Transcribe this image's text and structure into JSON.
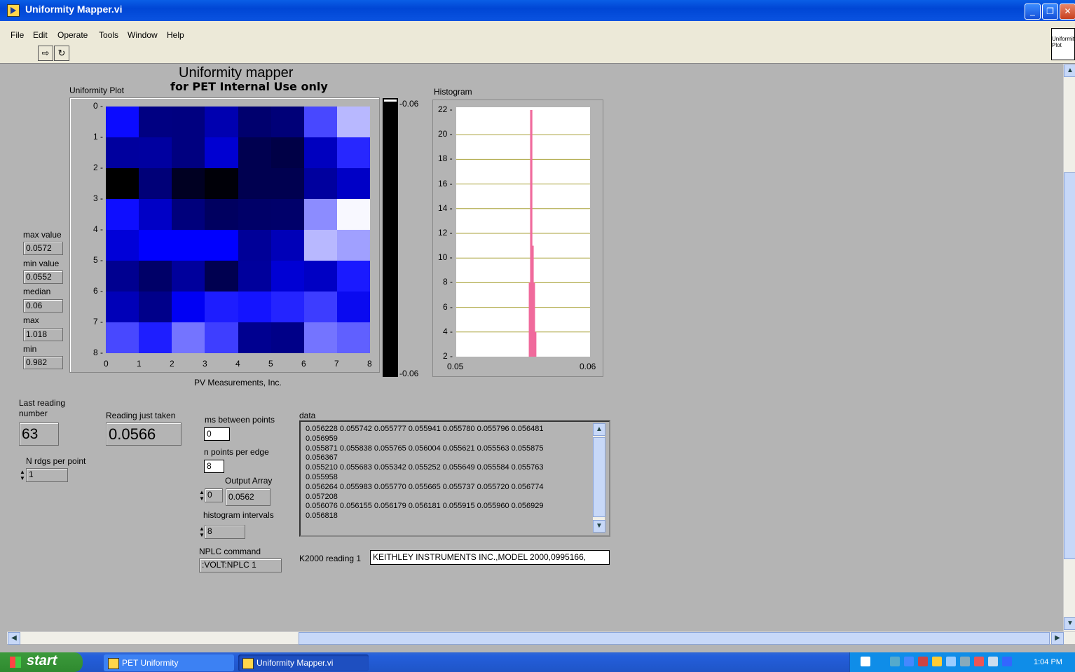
{
  "window": {
    "title": "Uniformity Mapper.vi"
  },
  "menu": [
    "File",
    "Edit",
    "Operate",
    "Tools",
    "Window",
    "Help"
  ],
  "vi_icon_text": "Uniformity Plot",
  "header": {
    "title": "Uniformity mapper",
    "subtitle": "for PET Internal Use only"
  },
  "uniformity_plot": {
    "label": "Uniformity Plot",
    "y_ticks": [
      "0",
      "1",
      "2",
      "3",
      "4",
      "5",
      "6",
      "7",
      "8"
    ],
    "x_ticks": [
      "0",
      "1",
      "2",
      "3",
      "4",
      "5",
      "6",
      "7",
      "8"
    ],
    "footer": "PV Measurements, Inc.",
    "grid_colors": [
      [
        "#0b0bff",
        "#000082",
        "#000080",
        "#0000b0",
        "#00006e",
        "#000078",
        "#4848ff",
        "#b8b8ff"
      ],
      [
        "#00009e",
        "#0000a0",
        "#000080",
        "#0000d2",
        "#000050",
        "#000046",
        "#0000bf",
        "#2727ff"
      ],
      [
        "#000000",
        "#000078",
        "#000022",
        "#000008",
        "#000050",
        "#000050",
        "#00009e",
        "#0000c6"
      ],
      [
        "#0e0eff",
        "#0000c6",
        "#00007c",
        "#000060",
        "#000068",
        "#00006a",
        "#8c8cff",
        "#f8f8ff"
      ],
      [
        "#0000d8",
        "#0000ff",
        "#0000ff",
        "#0000ff",
        "#000098",
        "#0000b8",
        "#b8b8ff",
        "#a0a0ff"
      ],
      [
        "#000090",
        "#000068",
        "#00009c",
        "#000050",
        "#00009c",
        "#0000d4",
        "#0000c4",
        "#1a1aff"
      ],
      [
        "#0000b8",
        "#00008a",
        "#0000f4",
        "#1d1dff",
        "#1414ff",
        "#2424ff",
        "#3d3dff",
        "#0a0af0"
      ],
      [
        "#4848ff",
        "#1e1eff",
        "#7474ff",
        "#3e3eff",
        "#000090",
        "#000088",
        "#7474ff",
        "#6060ff"
      ]
    ]
  },
  "colorbar": {
    "top_label": "-0.06",
    "bottom_label": "-0.06"
  },
  "histogram": {
    "label": "Histogram",
    "y_ticks": [
      "22",
      "20",
      "18",
      "16",
      "14",
      "12",
      "10",
      "8",
      "6",
      "4",
      "2"
    ],
    "x_min_label": "0.05",
    "x_max_label": "0.06"
  },
  "chart_data": {
    "type": "bar",
    "title": "Histogram",
    "xlim": [
      0.05,
      0.06
    ],
    "ylim": [
      2,
      22
    ],
    "x": [
      0.0553,
      0.0555,
      0.0556,
      0.0557,
      0.0558,
      0.0559,
      0.056,
      0.0561
    ],
    "values": [
      2,
      8,
      22,
      11,
      8,
      4,
      2,
      1
    ]
  },
  "stats": {
    "max_value_label": "max value",
    "max_value": "0.0572",
    "min_value_label": "min value",
    "min_value": "0.0552",
    "median_label": "median",
    "median": "0.06",
    "max_label": "max",
    "max": "1.018",
    "min_label": "min",
    "min": "0.982"
  },
  "controls": {
    "last_reading_label_1": "Last reading",
    "last_reading_label_2": "number",
    "last_reading_value": "63",
    "reading_taken_label": "Reading just taken",
    "reading_taken_value": "0.0566",
    "n_rdgs_label": "N rdgs per point",
    "n_rdgs_value": "1",
    "ms_between_label": "ms between points",
    "ms_between_value": "0",
    "n_points_label": "n points per edge",
    "n_points_value": "8",
    "output_array_label": "Output Array",
    "output_index": "0",
    "output_value": "0.0562",
    "hist_intervals_label": "histogram intervals",
    "hist_intervals_value": "8",
    "nplc_label": "NPLC command",
    "nplc_value": ":VOLT:NPLC 1",
    "k2000_label": "K2000 reading 1",
    "k2000_value": "KEITHLEY INSTRUMENTS INC.,MODEL 2000,0995166,"
  },
  "data": {
    "label": "data",
    "text": "0.056228 0.055742 0.055777 0.055941 0.055780 0.055796 0.056481\n0.056959\n0.055871 0.055838 0.055765 0.056004 0.055621 0.055563 0.055875\n0.056367\n0.055210 0.055683 0.055342 0.055252 0.055649 0.055584 0.055763\n0.055958\n0.056264 0.055983 0.055770 0.055665 0.055737 0.055720 0.056774\n0.057208\n0.056076 0.056155 0.056179 0.056181 0.055915 0.055960 0.056929\n0.056818"
  },
  "taskbar": {
    "start_label": "start",
    "tasks": [
      "PET Uniformity",
      "Uniformity Mapper.vi"
    ],
    "clock": "1:04 PM"
  }
}
